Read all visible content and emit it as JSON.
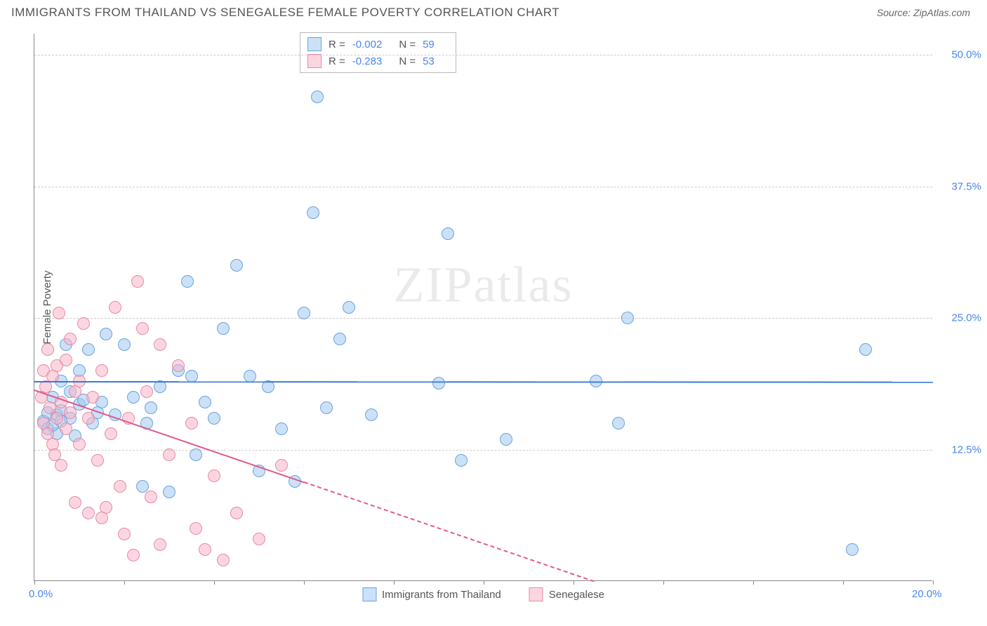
{
  "title": "IMMIGRANTS FROM THAILAND VS SENEGALESE FEMALE POVERTY CORRELATION CHART",
  "source": "Source: ZipAtlas.com",
  "watermark": "ZIPatlas",
  "y_axis_label": "Female Poverty",
  "chart": {
    "type": "scatter",
    "xlim": [
      0,
      20
    ],
    "ylim": [
      0,
      52
    ],
    "x_ticks": [
      0,
      2,
      4,
      6,
      8,
      10,
      12,
      14,
      16,
      18,
      20
    ],
    "x_tick_labels": {
      "0": "0.0%",
      "20": "20.0%"
    },
    "y_gridlines": [
      12.5,
      25.0,
      37.5,
      50.0
    ],
    "y_tick_labels": [
      "12.5%",
      "25.0%",
      "37.5%",
      "50.0%"
    ],
    "background_color": "#ffffff",
    "grid_color": "#cccccc",
    "axis_color": "#888888",
    "tick_label_color": "#4a86e8",
    "marker_radius": 9,
    "series": [
      {
        "name": "Immigrants from Thailand",
        "fill": "rgba(160,200,240,0.55)",
        "stroke": "#6aa3de",
        "regression_color": "#3b78d8",
        "regression": {
          "y_at_x0": 19.0,
          "y_at_x20": 18.96
        },
        "R": "-0.002",
        "N": "59",
        "points": [
          [
            0.2,
            15.2
          ],
          [
            0.3,
            16.0
          ],
          [
            0.3,
            14.5
          ],
          [
            0.4,
            17.5
          ],
          [
            0.5,
            15.8
          ],
          [
            0.5,
            14.0
          ],
          [
            0.6,
            19.0
          ],
          [
            0.6,
            16.2
          ],
          [
            0.7,
            22.5
          ],
          [
            0.8,
            15.5
          ],
          [
            0.8,
            18.0
          ],
          [
            0.9,
            13.8
          ],
          [
            1.0,
            20.0
          ],
          [
            1.0,
            16.8
          ],
          [
            1.2,
            22.0
          ],
          [
            1.3,
            15.0
          ],
          [
            1.5,
            17.0
          ],
          [
            1.6,
            23.5
          ],
          [
            1.8,
            15.8
          ],
          [
            2.0,
            22.5
          ],
          [
            2.2,
            17.5
          ],
          [
            2.4,
            9.0
          ],
          [
            2.5,
            15.0
          ],
          [
            2.8,
            18.5
          ],
          [
            3.0,
            8.5
          ],
          [
            3.2,
            20.0
          ],
          [
            3.4,
            28.5
          ],
          [
            3.5,
            19.5
          ],
          [
            3.8,
            17.0
          ],
          [
            4.0,
            15.5
          ],
          [
            4.2,
            24.0
          ],
          [
            4.5,
            30.0
          ],
          [
            5.0,
            10.5
          ],
          [
            5.2,
            18.5
          ],
          [
            5.5,
            14.5
          ],
          [
            5.8,
            9.5
          ],
          [
            6.2,
            35.0
          ],
          [
            6.3,
            46.0
          ],
          [
            6.5,
            16.5
          ],
          [
            6.8,
            23.0
          ],
          [
            7.0,
            26.0
          ],
          [
            7.5,
            15.8
          ],
          [
            9.0,
            18.8
          ],
          [
            9.2,
            33.0
          ],
          [
            9.5,
            11.5
          ],
          [
            10.5,
            13.5
          ],
          [
            12.5,
            19.0
          ],
          [
            13.0,
            15.0
          ],
          [
            13.2,
            25.0
          ],
          [
            18.2,
            3.0
          ],
          [
            18.5,
            22.0
          ],
          [
            0.4,
            14.8
          ],
          [
            0.6,
            15.2
          ],
          [
            1.1,
            17.2
          ],
          [
            1.4,
            16.0
          ],
          [
            2.6,
            16.5
          ],
          [
            3.6,
            12.0
          ],
          [
            4.8,
            19.5
          ],
          [
            6.0,
            25.5
          ]
        ]
      },
      {
        "name": "Senegalese",
        "fill": "rgba(248,180,200,0.55)",
        "stroke": "#e68aa5",
        "regression_color": "#e05a8a",
        "regression": {
          "y_at_x0": 18.2,
          "y_at_x20": -11.0
        },
        "regression_dash_after_x": 6.0,
        "R": "-0.283",
        "N": "53",
        "points": [
          [
            0.15,
            17.5
          ],
          [
            0.2,
            20.0
          ],
          [
            0.2,
            15.0
          ],
          [
            0.25,
            18.5
          ],
          [
            0.3,
            22.0
          ],
          [
            0.3,
            14.0
          ],
          [
            0.35,
            16.5
          ],
          [
            0.4,
            19.5
          ],
          [
            0.4,
            13.0
          ],
          [
            0.5,
            20.5
          ],
          [
            0.5,
            15.5
          ],
          [
            0.55,
            25.5
          ],
          [
            0.6,
            17.0
          ],
          [
            0.6,
            11.0
          ],
          [
            0.7,
            21.0
          ],
          [
            0.7,
            14.5
          ],
          [
            0.8,
            23.0
          ],
          [
            0.8,
            16.0
          ],
          [
            0.9,
            18.0
          ],
          [
            0.9,
            7.5
          ],
          [
            1.0,
            19.0
          ],
          [
            1.0,
            13.0
          ],
          [
            1.1,
            24.5
          ],
          [
            1.2,
            15.5
          ],
          [
            1.2,
            6.5
          ],
          [
            1.3,
            17.5
          ],
          [
            1.4,
            11.5
          ],
          [
            1.5,
            20.0
          ],
          [
            1.6,
            7.0
          ],
          [
            1.7,
            14.0
          ],
          [
            1.8,
            26.0
          ],
          [
            1.9,
            9.0
          ],
          [
            2.0,
            4.5
          ],
          [
            2.1,
            15.5
          ],
          [
            2.2,
            2.5
          ],
          [
            2.4,
            24.0
          ],
          [
            2.5,
            18.0
          ],
          [
            2.6,
            8.0
          ],
          [
            2.8,
            22.5
          ],
          [
            2.8,
            3.5
          ],
          [
            3.0,
            12.0
          ],
          [
            3.2,
            20.5
          ],
          [
            3.5,
            15.0
          ],
          [
            3.8,
            3.0
          ],
          [
            4.0,
            10.0
          ],
          [
            4.2,
            2.0
          ],
          [
            4.5,
            6.5
          ],
          [
            5.0,
            4.0
          ],
          [
            5.5,
            11.0
          ],
          [
            2.3,
            28.5
          ],
          [
            1.5,
            6.0
          ],
          [
            0.45,
            12.0
          ],
          [
            3.6,
            5.0
          ]
        ]
      }
    ]
  },
  "legend": {
    "stats_labels": {
      "R": "R =",
      "N": "N ="
    },
    "series1_label": "Immigrants from Thailand",
    "series2_label": "Senegalese"
  }
}
